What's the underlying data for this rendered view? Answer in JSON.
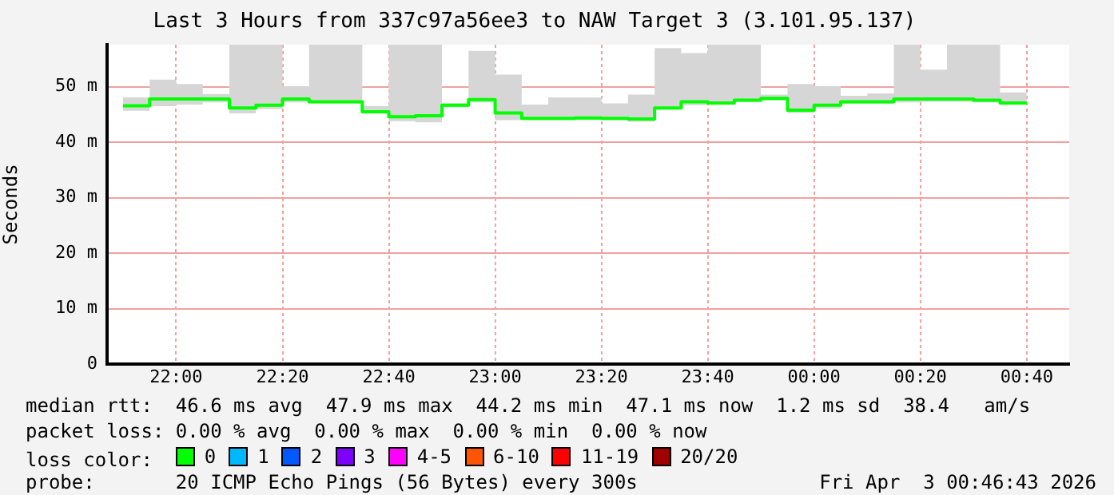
{
  "chart_data": {
    "type": "step",
    "title": "Last 3 Hours from 337c97a56ee3 to NAW Target 3 (3.101.95.137)",
    "ylabel": "Seconds",
    "legend_title": "loss color:",
    "x": [
      "2026-04-02T21:50",
      "2026-04-02T21:55",
      "2026-04-02T22:00",
      "2026-04-02T22:05",
      "2026-04-02T22:10",
      "2026-04-02T22:15",
      "2026-04-02T22:20",
      "2026-04-02T22:25",
      "2026-04-02T22:30",
      "2026-04-02T22:35",
      "2026-04-02T22:40",
      "2026-04-02T22:45",
      "2026-04-02T22:50",
      "2026-04-02T22:55",
      "2026-04-02T23:00",
      "2026-04-02T23:05",
      "2026-04-02T23:10",
      "2026-04-02T23:15",
      "2026-04-02T23:20",
      "2026-04-02T23:25",
      "2026-04-02T23:30",
      "2026-04-02T23:35",
      "2026-04-02T23:40",
      "2026-04-02T23:45",
      "2026-04-02T23:50",
      "2026-04-02T23:55",
      "2026-04-03T00:00",
      "2026-04-03T00:05",
      "2026-04-03T00:10",
      "2026-04-03T00:15",
      "2026-04-03T00:20",
      "2026-04-03T00:25",
      "2026-04-03T00:30",
      "2026-04-03T00:35",
      "2026-04-03T00:40"
    ],
    "series": [
      {
        "name": "0",
        "color": "#00ff00",
        "values": [
          46.6,
          47.8,
          47.8,
          47.8,
          46.2,
          46.7,
          47.8,
          47.3,
          47.3,
          45.5,
          44.6,
          44.8,
          46.7,
          47.7,
          45.3,
          44.3,
          44.3,
          44.4,
          44.3,
          44.2,
          46.2,
          47.3,
          47.1,
          47.6,
          47.9,
          45.8,
          46.7,
          47.3,
          47.3,
          47.8,
          47.8,
          47.8,
          47.6,
          47.1,
          47.1
        ],
        "upper": [
          48.1,
          51.3,
          50.5,
          48.7,
          57.6,
          57.6,
          50.1,
          57.6,
          57.6,
          46.5,
          57.6,
          57.6,
          47,
          56.5,
          52.2,
          46.8,
          48.1,
          48.1,
          47,
          48.6,
          57,
          56.1,
          57.6,
          57.6,
          48.6,
          50.5,
          50.1,
          48.4,
          48.8,
          57.6,
          53.1,
          57.6,
          57.6,
          49,
          48.3
        ],
        "lower": [
          45.7,
          46.5,
          46.8,
          47.2,
          45.2,
          46,
          47.2,
          47,
          47,
          45.2,
          43.8,
          43.6,
          46.3,
          47.2,
          44,
          44,
          44,
          44,
          44,
          43.7,
          46,
          46.7,
          46.8,
          47.3,
          47.6,
          45.3,
          46.1,
          46.9,
          46.9,
          47.2,
          47.3,
          47.3,
          47.2,
          46.8,
          46.8
        ]
      },
      {
        "name": "1",
        "color": "#00b8ff",
        "values": [
          null,
          null,
          null,
          null,
          null,
          null,
          null,
          null,
          null,
          null,
          null,
          null,
          null,
          null,
          null,
          null,
          null,
          null,
          null,
          null,
          null,
          null,
          null,
          null,
          null,
          null,
          null,
          null,
          null,
          null,
          null,
          null,
          null,
          null,
          null
        ]
      },
      {
        "name": "2",
        "color": "#0059ff",
        "values": [
          null,
          null,
          null,
          null,
          null,
          null,
          null,
          null,
          null,
          null,
          null,
          null,
          null,
          null,
          null,
          null,
          null,
          null,
          null,
          null,
          null,
          null,
          null,
          null,
          null,
          null,
          null,
          null,
          null,
          null,
          null,
          null,
          null,
          null,
          null
        ]
      },
      {
        "name": "3",
        "color": "#7e00ff",
        "values": [
          null,
          null,
          null,
          null,
          null,
          null,
          null,
          null,
          null,
          null,
          null,
          null,
          null,
          null,
          null,
          null,
          null,
          null,
          null,
          null,
          null,
          null,
          null,
          null,
          null,
          null,
          null,
          null,
          null,
          null,
          null,
          null,
          null,
          null,
          null
        ]
      },
      {
        "name": "4-5",
        "color": "#ff00fe",
        "values": [
          null,
          null,
          null,
          null,
          null,
          null,
          null,
          null,
          null,
          null,
          null,
          null,
          null,
          null,
          null,
          null,
          null,
          null,
          null,
          null,
          null,
          null,
          null,
          null,
          null,
          null,
          null,
          null,
          null,
          null,
          null,
          null,
          null,
          null,
          null
        ]
      },
      {
        "name": "6-10",
        "color": "#ff5500",
        "values": [
          null,
          null,
          null,
          null,
          null,
          null,
          null,
          null,
          null,
          null,
          null,
          null,
          null,
          null,
          null,
          null,
          null,
          null,
          null,
          null,
          null,
          null,
          null,
          null,
          null,
          null,
          null,
          null,
          null,
          null,
          null,
          null,
          null,
          null,
          null
        ]
      },
      {
        "name": "11-19",
        "color": "#ff0000",
        "values": [
          null,
          null,
          null,
          null,
          null,
          null,
          null,
          null,
          null,
          null,
          null,
          null,
          null,
          null,
          null,
          null,
          null,
          null,
          null,
          null,
          null,
          null,
          null,
          null,
          null,
          null,
          null,
          null,
          null,
          null,
          null,
          null,
          null,
          null,
          null
        ]
      },
      {
        "name": "20/20",
        "color": "#a10000",
        "values": [
          null,
          null,
          null,
          null,
          null,
          null,
          null,
          null,
          null,
          null,
          null,
          null,
          null,
          null,
          null,
          null,
          null,
          null,
          null,
          null,
          null,
          null,
          null,
          null,
          null,
          null,
          null,
          null,
          null,
          null,
          null,
          null,
          null,
          null,
          null
        ]
      }
    ],
    "xlim": [
      "2026-04-02T21:47",
      "2026-04-03T00:48"
    ],
    "xticks": [
      {
        "value": "2026-04-02T22:00",
        "label": "22:00"
      },
      {
        "value": "2026-04-02T22:20",
        "label": "22:20"
      },
      {
        "value": "2026-04-02T22:40",
        "label": "22:40"
      },
      {
        "value": "2026-04-02T23:00",
        "label": "23:00"
      },
      {
        "value": "2026-04-02T23:20",
        "label": "23:20"
      },
      {
        "value": "2026-04-02T23:40",
        "label": "23:40"
      },
      {
        "value": "2026-04-03T00:00",
        "label": "00:00"
      },
      {
        "value": "2026-04-03T00:20",
        "label": "00:20"
      },
      {
        "value": "2026-04-03T00:40",
        "label": "00:40"
      }
    ],
    "ylim": [
      0,
      57.6
    ],
    "yticks": [
      0,
      {
        "value": 10,
        "label": "10 m"
      },
      {
        "value": 20,
        "label": "20 m"
      },
      {
        "value": 30,
        "label": "30 m"
      },
      {
        "value": 40,
        "label": "40 m"
      },
      {
        "value": 50,
        "label": "50 m"
      }
    ],
    "grid": true,
    "legend": "bottom",
    "annotations": [
      "median rtt:  46.6 ms avg  47.9 ms max  44.2 ms min  47.1 ms now  1.2 ms sd  38.4   am/s",
      "packet loss: 0.00 % avg  0.00 % max  0.00 % min  0.00 % now",
      "probe:       20 ICMP Echo Pings (56 Bytes) every 300s",
      "Fri Apr  3 00:46:43 2026"
    ]
  }
}
